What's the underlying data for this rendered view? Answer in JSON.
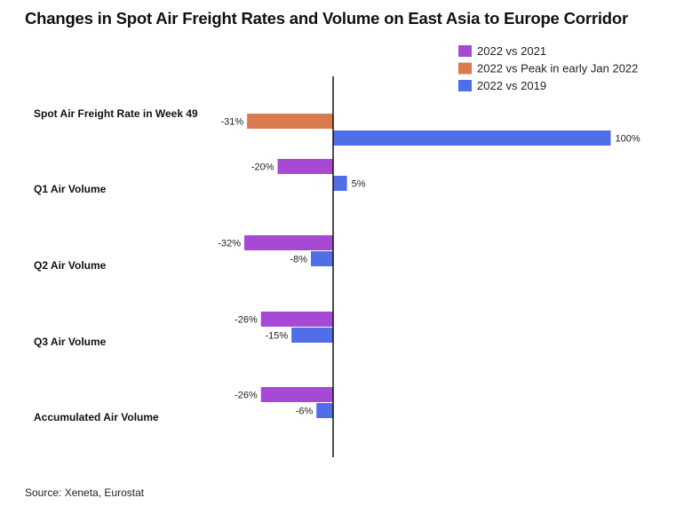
{
  "title": "Changes in Spot Air Freight Rates and Volume on East Asia to Europe Corridor",
  "source": "Source: Xeneta, Eurostat",
  "colors": {
    "2022 vs 2021": "#a64ad6",
    "2022 vs Peak in early Jan 2022": "#d97b4e",
    "2022 vs 2019": "#4f6ee8"
  },
  "chart_data": {
    "type": "bar",
    "orientation": "horizontal",
    "title": "Changes in Spot Air Freight Rates and Volume on East Asia to Europe Corridor",
    "legend_position": "top-right",
    "grid": false,
    "xlim": [
      -45,
      100
    ],
    "legend": [
      "2022 vs 2021",
      "2022 vs Peak in early Jan 2022",
      "2022 vs 2019"
    ],
    "categories": [
      "Spot Air Freight Rate in Week 49",
      "Q1 Air Volume",
      "Q2 Air Volume",
      "Q3 Air Volume",
      "Accumulated Air Volume"
    ],
    "groups": [
      {
        "category": "Spot Air Freight Rate in Week 49",
        "bars": [
          {
            "series": "2022 vs Peak in early Jan 2022",
            "value": -31,
            "label": "-31%"
          },
          {
            "series": "2022 vs 2019",
            "value": 100,
            "label": "100%"
          }
        ]
      },
      {
        "category": "Q1 Air Volume",
        "bars": [
          {
            "series": "2022 vs 2021",
            "value": -20,
            "label": "-20%"
          },
          {
            "series": "2022 vs 2019",
            "value": 5,
            "label": "5%"
          }
        ]
      },
      {
        "category": "Q2 Air Volume",
        "bars": [
          {
            "series": "2022 vs 2021",
            "value": -32,
            "label": "-32%"
          },
          {
            "series": "2022 vs 2019",
            "value": -8,
            "label": "-8%"
          }
        ]
      },
      {
        "category": "Q3 Air Volume",
        "bars": [
          {
            "series": "2022 vs 2021",
            "value": -26,
            "label": "-26%"
          },
          {
            "series": "2022 vs 2019",
            "value": -15,
            "label": "-15%"
          }
        ]
      },
      {
        "category": "Accumulated Air Volume",
        "bars": [
          {
            "series": "2022 vs 2021",
            "value": -26,
            "label": "-26%"
          },
          {
            "series": "2022 vs 2019",
            "value": -6,
            "label": "-6%"
          }
        ]
      }
    ]
  }
}
